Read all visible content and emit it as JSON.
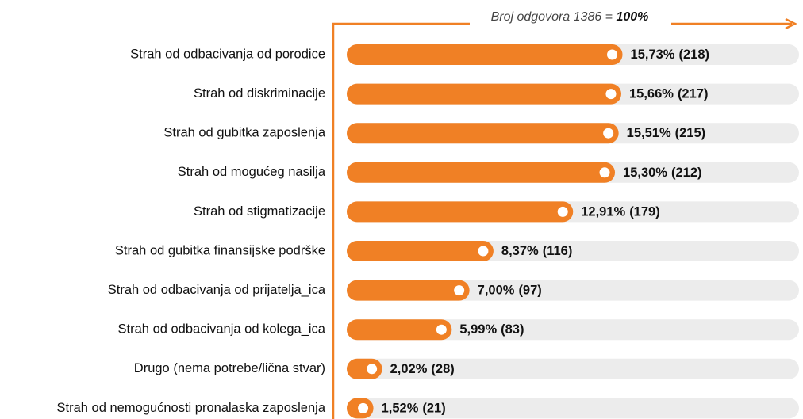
{
  "chart_data": {
    "type": "bar",
    "orientation": "horizontal",
    "annotation": {
      "text": "Broj odgovora 1386 =",
      "emphasis": "100%"
    },
    "categories": [
      "Strah od odbacivanja od porodice",
      "Strah od diskriminacije",
      "Strah od gubitka zaposlenja",
      "Strah od mogućeg nasilja",
      "Strah od stigmatizacije",
      "Strah od gubitka finansijske podrške",
      "Strah od odbacivanja od prijatelja_ica",
      "Strah od odbacivanja od kolega_ica",
      "Drugo (nema potrebe/lična stvar)",
      "Strah od nemogućnosti pronalaska zaposlenja"
    ],
    "values": [
      15.73,
      15.66,
      15.51,
      15.3,
      12.91,
      8.37,
      7.0,
      5.99,
      2.02,
      1.52
    ],
    "value_labels": [
      "15,73%",
      "15,66%",
      "15,51%",
      "15,30%",
      "12,91%",
      "8,37%",
      "7,00%",
      "5,99%",
      "2,02%",
      "1,52%"
    ],
    "counts": [
      218,
      217,
      215,
      212,
      179,
      116,
      97,
      83,
      28,
      21
    ],
    "count_labels": [
      "(218)",
      "(217)",
      "(215)",
      "(212)",
      "(179)",
      "(116)",
      "(97)",
      "(83)",
      "(28)",
      "(21)"
    ],
    "color": "#f08025",
    "track_color": "#ececec",
    "xlim": [
      0,
      25.8
    ]
  }
}
